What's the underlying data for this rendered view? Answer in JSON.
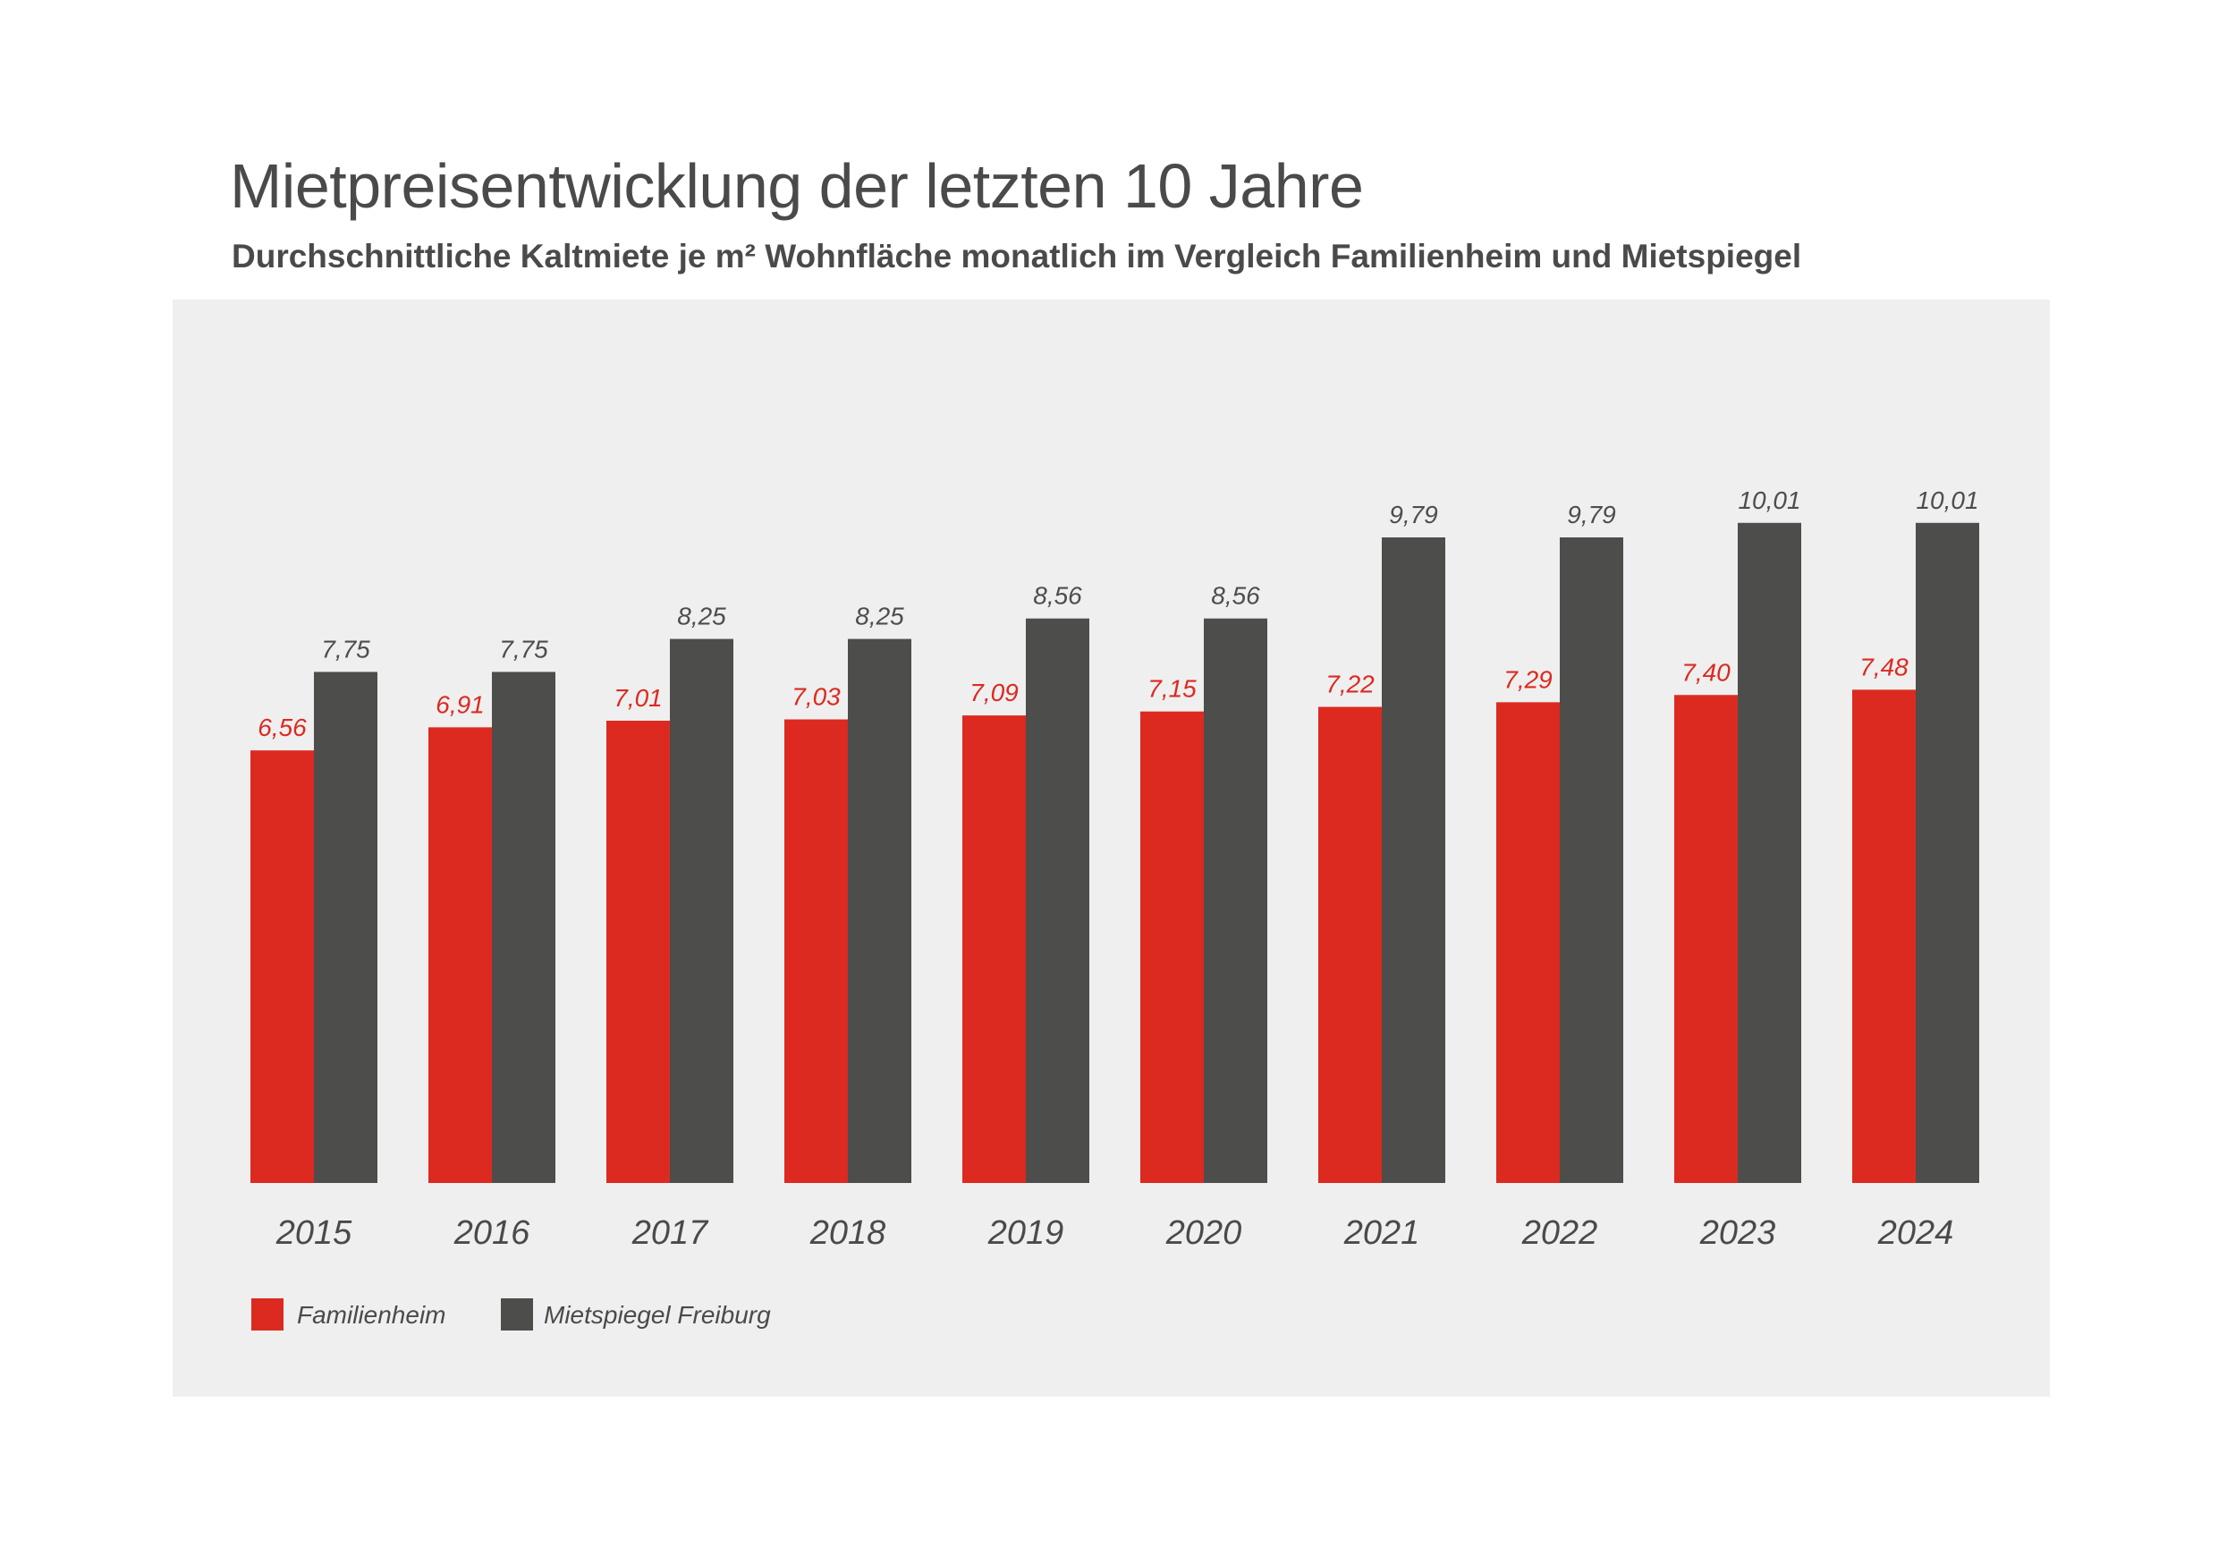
{
  "title": "Mietpreisentwicklung der letzten 10 Jahre",
  "subtitle": "Durchschnittliche Kaltmiete je m² Wohnfläche monatlich im Vergleich Familienheim und Mietspiegel",
  "colors": {
    "familienheim": "#dc2a20",
    "mietspiegel": "#4d4d4c",
    "panel_background": "#efefef",
    "text": "#4a4a4a"
  },
  "chart_data": {
    "type": "bar",
    "categories": [
      "2015",
      "2016",
      "2017",
      "2018",
      "2019",
      "2020",
      "2021",
      "2022",
      "2023",
      "2024"
    ],
    "series": [
      {
        "name": "Familienheim",
        "values": [
          6.56,
          6.91,
          7.01,
          7.03,
          7.09,
          7.15,
          7.22,
          7.29,
          7.4,
          7.48
        ],
        "labels": [
          "6,56",
          "6,91",
          "7,01",
          "7,03",
          "7,09",
          "7,15",
          "7,22",
          "7,29",
          "7,40",
          "7,48"
        ],
        "color": "#dc2a20"
      },
      {
        "name": "Mietspiegel Freiburg",
        "values": [
          7.75,
          7.75,
          8.25,
          8.25,
          8.56,
          8.56,
          9.79,
          9.79,
          10.01,
          10.01
        ],
        "labels": [
          "7,75",
          "7,75",
          "8,25",
          "8,25",
          "8,56",
          "8,56",
          "9,79",
          "9,79",
          "10,01",
          "10,01"
        ],
        "color": "#4d4d4c"
      }
    ],
    "ylim": [
      0,
      10.01
    ],
    "xlabel": "",
    "ylabel": "",
    "grid": false,
    "legend": "bottom-left"
  }
}
